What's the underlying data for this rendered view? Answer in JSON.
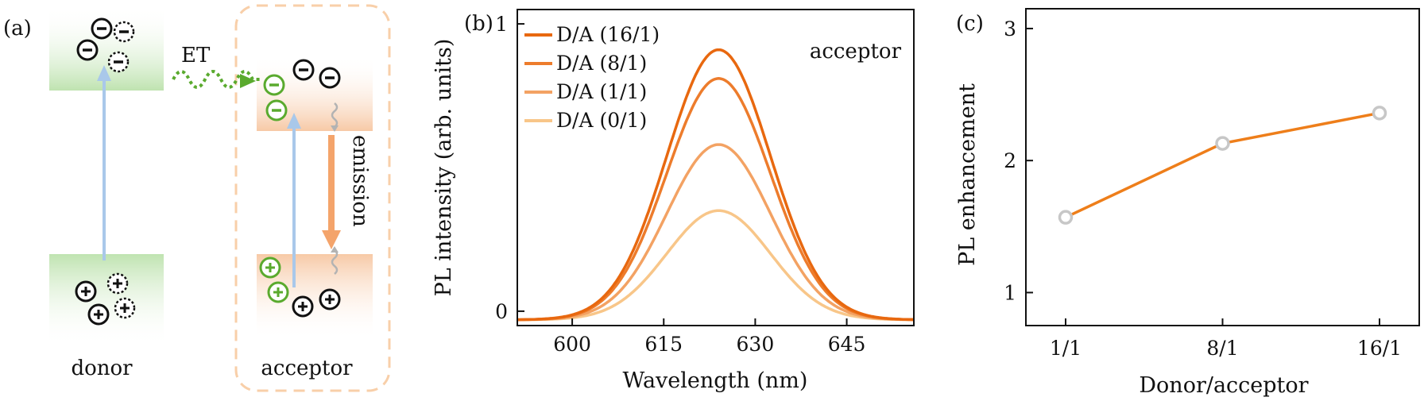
{
  "panel_a": {
    "label": "(a)",
    "et_label": "ET",
    "donor_label": "donor",
    "acceptor_label": "acceptor",
    "emission_label": "emission",
    "colors": {
      "band_green": "#bfe3b0",
      "band_orange": "#f7c9a6",
      "excite_arrow": "#a9c8ea",
      "et_arrow": "#5aaa2e",
      "emission_arrow": "#f4a46b",
      "box_border": "#f8cfa9",
      "green_charge": "#5aaa2e"
    }
  },
  "chart_data": [
    {
      "type": "line",
      "panel_label": "(b)",
      "annotation": "acceptor",
      "xlabel": "Wavelength (nm)",
      "ylabel": "PL intensity (arb. units)",
      "xlim": [
        591,
        656
      ],
      "ylim": [
        -0.05,
        1.05
      ],
      "xticks": [
        "600",
        "615",
        "630",
        "645"
      ],
      "xtick_values": [
        600,
        615,
        630,
        645
      ],
      "yticks": [
        "0",
        "1"
      ],
      "ytick_values": [
        0,
        1
      ],
      "legend_position": "top-left",
      "curve_model": {
        "center_nm": 624,
        "sigma_nm": 8.5,
        "baseline": -0.03
      },
      "series": [
        {
          "name": "D/A (16/1)",
          "peak": 0.91,
          "color": "#e8680f"
        },
        {
          "name": "D/A (8/1)",
          "peak": 0.81,
          "color": "#ed7c2c"
        },
        {
          "name": "D/A (1/1)",
          "peak": 0.58,
          "color": "#f3a263"
        },
        {
          "name": "D/A (0/1)",
          "peak": 0.35,
          "color": "#f8c689"
        }
      ]
    },
    {
      "type": "line",
      "panel_label": "(c)",
      "xlabel": "Donor/acceptor",
      "ylabel": "PL enhancement",
      "categories": [
        "1/1",
        "8/1",
        "16/1"
      ],
      "values": [
        1.57,
        2.13,
        2.36
      ],
      "ylim": [
        0.75,
        3.15
      ],
      "yticks": [
        "1",
        "2",
        "3"
      ],
      "ytick_values": [
        1,
        2,
        3
      ],
      "line_color": "#ee7e1a",
      "marker_color": "#c7c7c7"
    }
  ]
}
